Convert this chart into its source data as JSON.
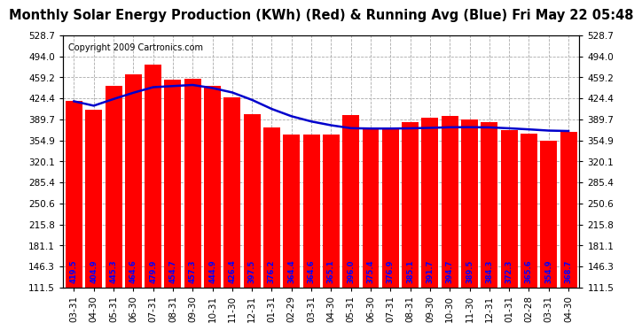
{
  "title": "Monthly Solar Energy Production (KWh) (Red) & Running Avg (Blue) Fri May 22 05:48",
  "copyright": "Copyright 2009 Cartronics.com",
  "categories": [
    "03-31",
    "04-30",
    "05-31",
    "06-30",
    "07-31",
    "08-31",
    "09-30",
    "10-31",
    "11-30",
    "12-31",
    "01-31",
    "02-29",
    "03-31",
    "04-30",
    "05-31",
    "06-30",
    "07-31",
    "08-31",
    "09-30",
    "10-30",
    "11-30",
    "12-31",
    "01-31",
    "02-28",
    "03-31",
    "04-30"
  ],
  "bar_values": [
    419.5,
    404.9,
    445.3,
    464.6,
    479.9,
    454.7,
    457.3,
    444.9,
    426.4,
    397.5,
    376.2,
    364.4,
    364.6,
    365.1,
    396.0,
    375.4,
    376.9,
    385.1,
    391.7,
    394.7,
    389.5,
    384.3,
    372.3,
    365.6,
    354.9,
    368.7
  ],
  "running_avg": [
    419.5,
    412.2,
    423.2,
    433.6,
    442.8,
    444.7,
    446.5,
    441.4,
    434.1,
    421.8,
    406.8,
    394.7,
    386.1,
    379.8,
    375.0,
    374.4,
    374.4,
    374.8,
    375.5,
    376.5,
    376.6,
    376.3,
    374.8,
    373.0,
    371.0,
    370.3
  ],
  "ylim_min": 111.5,
  "ylim_max": 528.7,
  "yticks": [
    111.5,
    146.3,
    181.1,
    215.8,
    250.6,
    285.4,
    320.1,
    354.9,
    389.7,
    424.4,
    459.2,
    494.0,
    528.7
  ],
  "bar_color": "#ff0000",
  "line_color": "#0000cc",
  "label_color": "#0000ff",
  "bg_color": "#ffffff",
  "grid_color": "#aaaaaa",
  "title_fontsize": 10.5,
  "copy_fontsize": 7,
  "val_fontsize": 6.0,
  "tick_fontsize": 7.5
}
